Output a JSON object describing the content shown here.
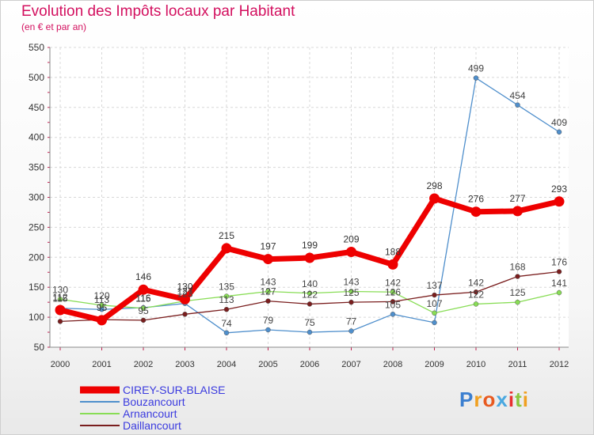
{
  "title": "Evolution des Impôts locaux par Habitant",
  "subtitle": "(en € et par an)",
  "logo": "Proxiti",
  "chart_data": {
    "type": "line",
    "title": "Evolution des Impôts locaux par Habitant",
    "subtitle": "(en € et par an)",
    "x": [
      "2000",
      "2001",
      "2002",
      "2003",
      "2004",
      "2005",
      "2006",
      "2007",
      "2008",
      "2009",
      "2010",
      "2011",
      "2012"
    ],
    "y_ticks": [
      "50",
      "100",
      "150",
      "200",
      "250",
      "300",
      "350",
      "400",
      "450",
      "500",
      "550"
    ],
    "ylim": [
      50,
      550
    ],
    "grid": true,
    "legend": "bottom-left",
    "series": [
      {
        "name": "CIREY-SUR-BLAISE",
        "color": "#ee0000",
        "values": [
          112,
          95,
          146,
          130,
          215,
          197,
          199,
          209,
          188,
          298,
          276,
          277,
          293
        ],
        "labels": [
          "112",
          "95",
          "146",
          "130",
          "215",
          "197",
          "199",
          "209",
          "188",
          "298",
          "276",
          "277",
          "293"
        ]
      },
      {
        "name": "Bouzancourt",
        "color": "#4f8fcc",
        "values": [
          115,
          113,
          116,
          123,
          74,
          79,
          75,
          77,
          105,
          91,
          499,
          454,
          409
        ],
        "labels": [
          "115",
          "113",
          "116",
          "123",
          "74",
          "79",
          "75",
          "77",
          "105",
          "",
          "499",
          "454",
          "409"
        ]
      },
      {
        "name": "Arnancourt",
        "color": "#88dd55",
        "values": [
          130,
          120,
          115,
          127,
          135,
          143,
          140,
          143,
          142,
          107,
          122,
          125,
          141
        ],
        "labels": [
          "130",
          "120",
          "115",
          "127",
          "135",
          "143",
          "140",
          "143",
          "142",
          "107",
          "122",
          "125",
          "141"
        ]
      },
      {
        "name": "Daillancourt",
        "color": "#7a1e1e",
        "values": [
          93,
          96,
          95,
          105,
          113,
          127,
          122,
          125,
          126,
          137,
          142,
          168,
          176
        ],
        "labels": [
          "",
          "",
          "95",
          "",
          "113",
          "127",
          "122",
          "125",
          "126",
          "137",
          "142",
          "168",
          "176"
        ]
      }
    ]
  }
}
